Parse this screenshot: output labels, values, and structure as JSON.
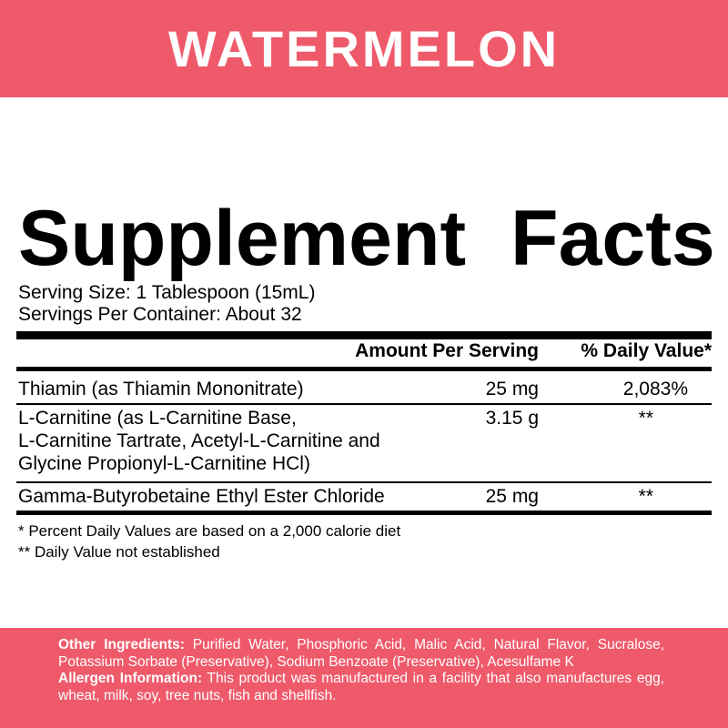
{
  "header": {
    "title": "WATERMELON"
  },
  "facts": {
    "title": "Supplement Facts",
    "serving_size": "Serving Size: 1 Tablespoon (15mL)",
    "servings_per_container": "Servings Per Container: About 32",
    "columns": [
      "Amount Per Serving",
      "% Daily Value*"
    ],
    "rows": [
      {
        "name": [
          "Thiamin (as Thiamin Mononitrate)"
        ],
        "amount": "25 mg",
        "daily_value": "2,083%"
      },
      {
        "name": [
          "L-Carnitine (as L-Carnitine Base,",
          "L-Carnitine Tartrate, Acetyl-L-Carnitine and",
          "Glycine Propionyl-L-Carnitine HCl)"
        ],
        "amount": "3.15 g",
        "daily_value": "**"
      },
      {
        "name": [
          "Gamma-Butyrobetaine Ethyl Ester Chloride"
        ],
        "amount": "25 mg",
        "daily_value": "**"
      }
    ],
    "footnotes": [
      "* Percent Daily Values are based on a 2,000 calorie diet",
      "** Daily Value not established"
    ]
  },
  "footer": {
    "other_ingredients": {
      "label": "Other Ingredients:",
      "text": "Purified Water, Phosphoric Acid, Malic  Acid, Natural Flavor, Sucralose, Potassium Sorbate (Preservative),  Sodium Benzoate (Preservative), Acesulfame K"
    },
    "allergen": {
      "label": "Allergen Information:",
      "text": "This product was manufactured in a facility that also manufactures egg, wheat, milk, soy, tree nuts, fish and shellfish."
    }
  }
}
